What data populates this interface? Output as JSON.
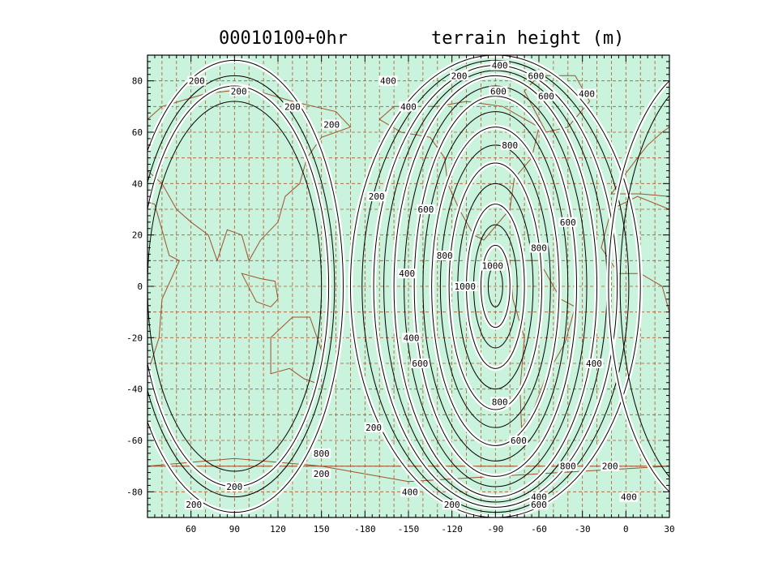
{
  "header": {
    "date_label": "00010100+0hr",
    "field_label": "terrain height (m)"
  },
  "colors": {
    "background": "#ffffff",
    "map_fill": "#c9f3dc",
    "grid": "#b4552a",
    "coast": "#a0522d",
    "contour": "#000000",
    "frame": "#000000"
  },
  "chart_data": {
    "type": "contour-map",
    "title": "terrain height (m)",
    "subtitle": "00010100+0hr",
    "xlabel": "",
    "ylabel": "",
    "lon_range": [
      30,
      390
    ],
    "lat_range": [
      -90,
      90
    ],
    "x_ticks": [
      {
        "lon": 60,
        "label": "60"
      },
      {
        "lon": 90,
        "label": "90"
      },
      {
        "lon": 120,
        "label": "120"
      },
      {
        "lon": 150,
        "label": "150"
      },
      {
        "lon": 180,
        "label": "-180"
      },
      {
        "lon": 210,
        "label": "-150"
      },
      {
        "lon": 240,
        "label": "-120"
      },
      {
        "lon": 270,
        "label": "-90"
      },
      {
        "lon": 300,
        "label": "-60"
      },
      {
        "lon": 330,
        "label": "-30"
      },
      {
        "lon": 360,
        "label": "0"
      },
      {
        "lon": 390,
        "label": "30"
      }
    ],
    "y_ticks": [
      {
        "lat": 80,
        "label": "80"
      },
      {
        "lat": 60,
        "label": "60"
      },
      {
        "lat": 40,
        "label": "40"
      },
      {
        "lat": 20,
        "label": "20"
      },
      {
        "lat": 0,
        "label": "0"
      },
      {
        "lat": -20,
        "label": "-20"
      },
      {
        "lat": -40,
        "label": "-40"
      },
      {
        "lat": -60,
        "label": "-60"
      },
      {
        "lat": -80,
        "label": "-80"
      }
    ],
    "grid": true,
    "grid_step_deg": 10,
    "contour_interval_m": 100,
    "features": [
      {
        "name": "western-bump",
        "center_lon": 90,
        "center_lat": 0,
        "rings": [
          {
            "level": "200",
            "rx_deg": 75,
            "ry_deg": 88
          },
          {
            "level": "200",
            "rx_deg": 69,
            "ry_deg": 82
          },
          {
            "level": "",
            "rx_deg": 65,
            "ry_deg": 78
          },
          {
            "level": "",
            "rx_deg": 60,
            "ry_deg": 72
          }
        ]
      },
      {
        "name": "central-bump",
        "center_lon": 270,
        "center_lat": 0,
        "rings": [
          {
            "level": "200",
            "rx_deg": 100,
            "ry_deg": 90
          },
          {
            "level": "200",
            "rx_deg": 92,
            "ry_deg": 88
          },
          {
            "level": "400",
            "rx_deg": 84,
            "ry_deg": 86
          },
          {
            "level": "400",
            "rx_deg": 77,
            "ry_deg": 84
          },
          {
            "level": "",
            "rx_deg": 70,
            "ry_deg": 82
          },
          {
            "level": "600",
            "rx_deg": 63,
            "ry_deg": 78
          },
          {
            "level": "600",
            "rx_deg": 56,
            "ry_deg": 74
          },
          {
            "level": "",
            "rx_deg": 50,
            "ry_deg": 68
          },
          {
            "level": "800",
            "rx_deg": 44,
            "ry_deg": 62
          },
          {
            "level": "800",
            "rx_deg": 38,
            "ry_deg": 55
          },
          {
            "level": "",
            "rx_deg": 32,
            "ry_deg": 48
          },
          {
            "level": "",
            "rx_deg": 26,
            "ry_deg": 40
          },
          {
            "level": "1000",
            "rx_deg": 20,
            "ry_deg": 32
          },
          {
            "level": "1000",
            "rx_deg": 15,
            "ry_deg": 24
          },
          {
            "level": "",
            "rx_deg": 10,
            "ry_deg": 16
          },
          {
            "level": "",
            "rx_deg": 5,
            "ry_deg": 8
          }
        ]
      },
      {
        "name": "eastern-bump",
        "center_lon": 420,
        "center_lat": 0,
        "rings": [
          {
            "level": "200",
            "rx_deg": 72,
            "ry_deg": 88
          },
          {
            "level": "400",
            "rx_deg": 64,
            "ry_deg": 84
          }
        ]
      }
    ],
    "contour_labels": [
      {
        "text": "200",
        "lon": 64,
        "lat": 80
      },
      {
        "text": "200",
        "lon": 93,
        "lat": 76
      },
      {
        "text": "200",
        "lon": 130,
        "lat": 70
      },
      {
        "text": "200",
        "lon": 157,
        "lat": 63
      },
      {
        "text": "200",
        "lon": 90,
        "lat": -78
      },
      {
        "text": "200",
        "lon": 150,
        "lat": -73
      },
      {
        "text": "200",
        "lon": 62,
        "lat": -85
      },
      {
        "text": "200",
        "lon": 188,
        "lat": 35
      },
      {
        "text": "200",
        "lon": 186,
        "lat": -55
      },
      {
        "text": "200",
        "lon": 240,
        "lat": -85
      },
      {
        "text": "200",
        "lon": 245,
        "lat": 82
      },
      {
        "text": "200",
        "lon": 349,
        "lat": -70
      },
      {
        "text": "400",
        "lon": 273,
        "lat": 86
      },
      {
        "text": "400",
        "lon": 196,
        "lat": 80
      },
      {
        "text": "400",
        "lon": 210,
        "lat": 70
      },
      {
        "text": "400",
        "lon": 209,
        "lat": 5
      },
      {
        "text": "400",
        "lon": 212,
        "lat": -20
      },
      {
        "text": "400",
        "lon": 211,
        "lat": -80
      },
      {
        "text": "400",
        "lon": 333,
        "lat": 75
      },
      {
        "text": "400",
        "lon": 338,
        "lat": -30
      },
      {
        "text": "400",
        "lon": 300,
        "lat": -82
      },
      {
        "text": "400",
        "lon": 362,
        "lat": -82
      },
      {
        "text": "600",
        "lon": 298,
        "lat": 82
      },
      {
        "text": "600",
        "lon": 272,
        "lat": 76
      },
      {
        "text": "600",
        "lon": 305,
        "lat": 74
      },
      {
        "text": "600",
        "lon": 286,
        "lat": -60
      },
      {
        "text": "600",
        "lon": 300,
        "lat": -85
      },
      {
        "text": "600",
        "lon": 222,
        "lat": 30
      },
      {
        "text": "600",
        "lon": 320,
        "lat": 25
      },
      {
        "text": "600",
        "lon": 218,
        "lat": -30
      },
      {
        "text": "800",
        "lon": 280,
        "lat": 55
      },
      {
        "text": "800",
        "lon": 273,
        "lat": -45
      },
      {
        "text": "800",
        "lon": 320,
        "lat": -70
      },
      {
        "text": "800",
        "lon": 235,
        "lat": 12
      },
      {
        "text": "800",
        "lon": 300,
        "lat": 15
      },
      {
        "text": "800",
        "lon": 150,
        "lat": -65
      },
      {
        "text": "1000",
        "lon": 268,
        "lat": 8
      },
      {
        "text": "1000",
        "lon": 249,
        "lat": 0
      }
    ]
  }
}
